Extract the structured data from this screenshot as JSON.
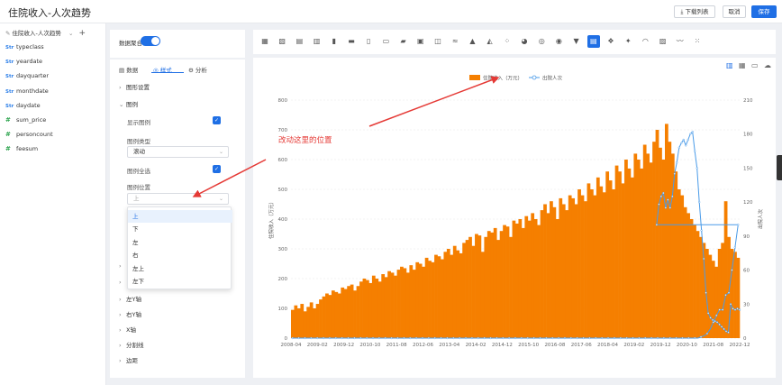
{
  "header": {
    "title": "住院收入-人次趋势",
    "download_label": "下载列表",
    "cancel_label": "取消",
    "save_label": "保存"
  },
  "sidebar": {
    "dataset_name": "住院收入-人次趋势",
    "fields": [
      {
        "type": "dim",
        "icon": "Str",
        "name": "typeclass"
      },
      {
        "type": "dim",
        "icon": "Str",
        "name": "yeardate"
      },
      {
        "type": "dim",
        "icon": "Str",
        "name": "dayquarter"
      },
      {
        "type": "dim",
        "icon": "Str",
        "name": "monthdate"
      },
      {
        "type": "dim",
        "icon": "Str",
        "name": "daydate"
      },
      {
        "type": "measure",
        "icon": "#",
        "name": "sum_price"
      },
      {
        "type": "measure",
        "icon": "#",
        "name": "personcount"
      },
      {
        "type": "measure",
        "icon": "#",
        "name": "feesum"
      }
    ]
  },
  "config": {
    "data_aggregate_label": "数据聚合",
    "tabs": [
      "数据",
      "样式",
      "分析"
    ],
    "sections": {
      "graphic_settings": "图形设置",
      "legend": "图例",
      "show_legend": "显示图例",
      "legend_type": "图例类型",
      "legend_type_value": "滚动",
      "legend_select_all": "图例全选",
      "legend_position": "图例位置",
      "legend_position_value": "上",
      "left_y": "左Y轴",
      "right_y": "右Y轴",
      "x_axis": "X轴",
      "split_line": "分割线",
      "margin": "边距"
    },
    "dropdown_options": [
      "上",
      "下",
      "左",
      "右",
      "左上",
      "左下"
    ]
  },
  "annotation": {
    "text": "改动这里的位置",
    "color": "#e53935"
  },
  "colors": {
    "accent": "#1f6fe5",
    "bar": "#f57f00",
    "line": "#4a9be8"
  },
  "chart_data": {
    "type": "bar",
    "legend": [
      "住院收入（万元）",
      "出院人次"
    ],
    "legend_position": "top-center",
    "ylabel_left": "住院收入（万元）",
    "ylabel_right": "出院人次",
    "ylim_left": [
      0,
      800
    ],
    "ylim_right": [
      0,
      210
    ],
    "y_ticks_left": [
      "0",
      "100",
      "200",
      "300",
      "400",
      "500",
      "600",
      "700",
      "800"
    ],
    "y_ticks_right": [
      "0",
      "30",
      "60",
      "90",
      "120",
      "150",
      "180",
      "210"
    ],
    "x_ticks": [
      "2008-04",
      "2009-02",
      "2009-12",
      "2010-10",
      "2011-08",
      "2012-06",
      "2013-04",
      "2014-02",
      "2014-12",
      "2015-10",
      "2016-08",
      "2017-06",
      "2018-04",
      "2019-02",
      "2019-12",
      "2020-10",
      "2021-08",
      "2022-12"
    ],
    "bar_values": [
      95,
      110,
      100,
      115,
      90,
      105,
      120,
      100,
      115,
      130,
      140,
      150,
      145,
      160,
      155,
      150,
      170,
      165,
      175,
      180,
      160,
      175,
      190,
      200,
      195,
      185,
      210,
      200,
      190,
      215,
      205,
      225,
      220,
      210,
      230,
      240,
      235,
      220,
      245,
      230,
      255,
      250,
      240,
      270,
      260,
      255,
      280,
      275,
      265,
      290,
      300,
      280,
      310,
      295,
      285,
      320,
      330,
      340,
      310,
      350,
      345,
      290,
      340,
      360,
      355,
      370,
      330,
      360,
      380,
      375,
      340,
      395,
      385,
      400,
      370,
      410,
      395,
      420,
      400,
      380,
      430,
      450,
      420,
      460,
      440,
      400,
      470,
      450,
      430,
      480,
      470,
      450,
      500,
      480,
      460,
      520,
      500,
      480,
      540,
      510,
      490,
      560,
      530,
      500,
      580,
      560,
      520,
      600,
      570,
      540,
      620,
      600,
      570,
      650,
      620,
      590,
      660,
      700,
      640,
      600,
      720,
      660,
      620,
      560,
      500,
      480,
      440,
      420,
      400,
      380,
      360,
      340,
      320,
      300,
      280,
      260,
      240,
      300,
      320,
      460,
      340,
      300,
      290,
      270
    ],
    "line_values": [
      0,
      0,
      0,
      0,
      0,
      0,
      0,
      0,
      0,
      0,
      0,
      0,
      0,
      0,
      0,
      0,
      0,
      0,
      0,
      0,
      0,
      0,
      0,
      0,
      0,
      0,
      0,
      0,
      0,
      0,
      0,
      0,
      0,
      0,
      0,
      0,
      0,
      0,
      0,
      0,
      0,
      0,
      0,
      0,
      0,
      0,
      0,
      0,
      0,
      0,
      0,
      0,
      0,
      0,
      0,
      0,
      0,
      0,
      0,
      0,
      0,
      0,
      0,
      0,
      0,
      0,
      0,
      0,
      0,
      0,
      0,
      0,
      0,
      0,
      0,
      0,
      0,
      0,
      0,
      0,
      0,
      0,
      0,
      0,
      0,
      0,
      0,
      0,
      0,
      0,
      0,
      0,
      0,
      0,
      0,
      0,
      0,
      0,
      0,
      0,
      0,
      0,
      0,
      0,
      0,
      0,
      0,
      0,
      0,
      0,
      0,
      0,
      0,
      0,
      0,
      0,
      0,
      0,
      0,
      0,
      0,
      0,
      0,
      0,
      0,
      0,
      0,
      0,
      0,
      0,
      0,
      0,
      1,
      2,
      4,
      8,
      14,
      20,
      25,
      25,
      38,
      40,
      60,
      80,
      100
    ],
    "line_values_2": [
      100,
      118,
      125,
      128,
      115,
      122,
      115,
      125,
      145,
      155,
      168,
      172,
      175,
      170,
      175,
      180,
      182,
      165,
      150,
      120,
      95,
      70,
      40,
      22,
      18,
      16,
      15,
      14,
      12,
      10,
      8,
      6,
      5,
      30,
      26,
      25,
      26,
      25
    ]
  }
}
